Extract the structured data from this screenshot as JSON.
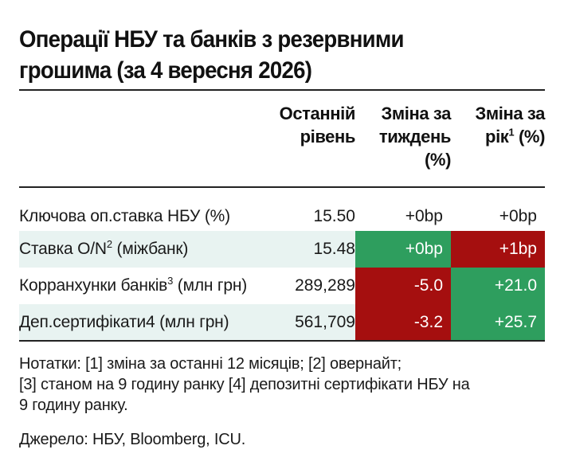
{
  "title": {
    "line1": "Операції НБУ та банків з резервними",
    "line2": "грошима (за 4 вересня 2026)"
  },
  "headers": {
    "level": [
      "Останній",
      "рівень"
    ],
    "week": [
      "Зміна за",
      "тиждень",
      "(%)"
    ],
    "year_line1": "Зміна за",
    "year_line2_pre": "рік",
    "year_line2_sup": "1",
    "year_line2_post": " (%)"
  },
  "rows": [
    {
      "label": "Ключова оп.ставка НБУ (%)",
      "label_sup": "",
      "label_post": "",
      "level": "15.50",
      "week": "+0bp",
      "year": "+0bp",
      "week_color": "none",
      "year_color": "none"
    },
    {
      "label": "Ставка O/N",
      "label_sup": "2",
      "label_post": " (міжбанк)",
      "level": "15.48",
      "week": "+0bp",
      "year": "+1bp",
      "week_color": "#2e9e5e",
      "year_color": "#a50f0f"
    },
    {
      "label": "Корранхунки банків",
      "label_sup": "3",
      "label_post": " (млн грн)",
      "level": "289,289",
      "week": "-5.0",
      "year": "+21.0",
      "week_color": "#a50f0f",
      "year_color": "#2e9e5e"
    },
    {
      "label": "Деп.сертифікати4 (млн грн)",
      "label_sup": "",
      "label_post": "",
      "level": "561,709",
      "week": "-3.2",
      "year": "+25.7",
      "week_color": "#a50f0f",
      "year_color": "#2e9e5e"
    }
  ],
  "notes": {
    "line1": "Нотатки: [1] зміна за останні 12 місяців; [2] овернайт;",
    "line2": "[3] станом на 9 годину ранку [4] депозитні сертифікати НБУ на",
    "line3": "9 годину ранку."
  },
  "source": "Джерело: НБУ, Bloomberg, ICU."
}
